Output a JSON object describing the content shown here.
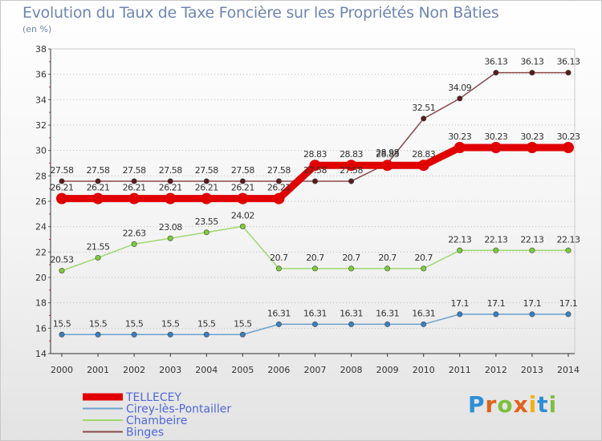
{
  "header": {
    "title": "Evolution du Taux de Taxe Foncière sur les Propriétés Non Bâties",
    "subtitle": "(en %)"
  },
  "logo": {
    "letters": [
      "P",
      "r",
      "o",
      "x",
      "i",
      "t",
      "i"
    ],
    "colors": [
      "#2e8fd6",
      "#e0621b",
      "#7fbf3f",
      "#e0621b",
      "#f2b10f",
      "#2e8fd6",
      "#7fbf3f"
    ]
  },
  "chart_data": {
    "type": "line",
    "x": [
      "2000",
      "2001",
      "2002",
      "2003",
      "2004",
      "2005",
      "2006",
      "2007",
      "2008",
      "2009",
      "2010",
      "2011",
      "2012",
      "2013",
      "2014"
    ],
    "ylim": [
      14,
      38
    ],
    "yticks": [
      "14",
      "16",
      "18",
      "20",
      "22",
      "24",
      "26",
      "28",
      "30",
      "32",
      "34",
      "36",
      "38"
    ],
    "grid": "horizontal dotted",
    "legend_position": "bottom-left",
    "series": [
      {
        "name": "TELLECEY",
        "color": "#e00000",
        "emphasis": true,
        "values": [
          26.21,
          26.21,
          26.21,
          26.21,
          26.21,
          26.21,
          26.21,
          28.83,
          28.83,
          28.83,
          28.83,
          30.23,
          30.23,
          30.23,
          30.23
        ],
        "labels": [
          "26.21",
          "26.21",
          "26.21",
          "26.21",
          "26.21",
          "26.21",
          "26.21",
          "28.83",
          "28.83",
          "28.83",
          "28.83",
          "30.23",
          "30.23",
          "30.23",
          "30.23"
        ]
      },
      {
        "name": "Cirey-lès-Pontailler",
        "color": "#6aa0cc",
        "marker": "#3a80c0",
        "values": [
          15.5,
          15.5,
          15.5,
          15.5,
          15.5,
          15.5,
          16.31,
          16.31,
          16.31,
          16.31,
          16.31,
          17.1,
          17.1,
          17.1,
          17.1
        ],
        "labels": [
          "15.5",
          "15.5",
          "15.5",
          "15.5",
          "15.5",
          "15.5",
          "16.31",
          "16.31",
          "16.31",
          "16.31",
          "16.31",
          "17.1",
          "17.1",
          "17.1",
          "17.1"
        ]
      },
      {
        "name": "Chambeire",
        "color": "#a0d870",
        "marker": "#7ccc3a",
        "values": [
          20.53,
          21.55,
          22.63,
          23.08,
          23.55,
          24.02,
          20.7,
          20.7,
          20.7,
          20.7,
          20.7,
          22.13,
          22.13,
          22.13,
          22.13
        ],
        "labels": [
          "20.53",
          "21.55",
          "22.63",
          "23.08",
          "23.55",
          "24.02",
          "20.7",
          "20.7",
          "20.7",
          "20.7",
          "20.7",
          "22.13",
          "22.13",
          "22.13",
          "22.13"
        ]
      },
      {
        "name": "Binges",
        "color": "#8a4a4a",
        "marker": "#5a1a1a",
        "values": [
          27.58,
          27.58,
          27.58,
          27.58,
          27.58,
          27.58,
          27.58,
          27.58,
          27.58,
          28.98,
          32.51,
          34.09,
          36.13,
          36.13,
          36.13
        ],
        "labels": [
          "27.58",
          "27.58",
          "27.58",
          "27.58",
          "27.58",
          "27.58",
          "27.58",
          "27.58",
          "27.58",
          "28.98",
          "32.51",
          "34.09",
          "36.13",
          "36.13",
          "36.13"
        ]
      }
    ]
  }
}
